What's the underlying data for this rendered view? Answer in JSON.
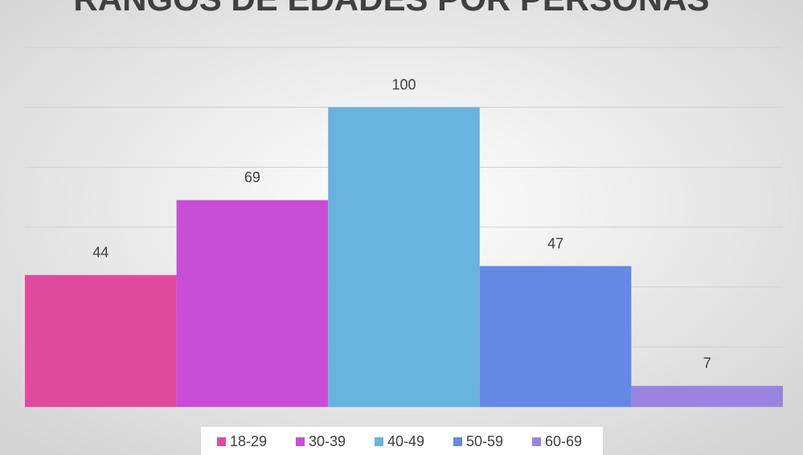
{
  "chart_data": {
    "type": "bar",
    "title": "RANGOS DE EDADES POR PERSONAS",
    "categories": [
      null
    ],
    "series": [
      {
        "name": "18-29",
        "color": "#e04a9e",
        "values": [
          44
        ]
      },
      {
        "name": "30-39",
        "color": "#c84fd5",
        "values": [
          69
        ]
      },
      {
        "name": "40-49",
        "color": "#69b3df",
        "values": [
          100
        ]
      },
      {
        "name": "50-59",
        "color": "#6389e5",
        "values": [
          47
        ]
      },
      {
        "name": "60-69",
        "color": "#9b84e0",
        "values": [
          7
        ]
      }
    ],
    "ylim": [
      0,
      120
    ],
    "yticks": [
      0,
      20,
      40,
      60,
      80,
      100,
      120
    ],
    "grid": true,
    "legend": "bottom"
  }
}
